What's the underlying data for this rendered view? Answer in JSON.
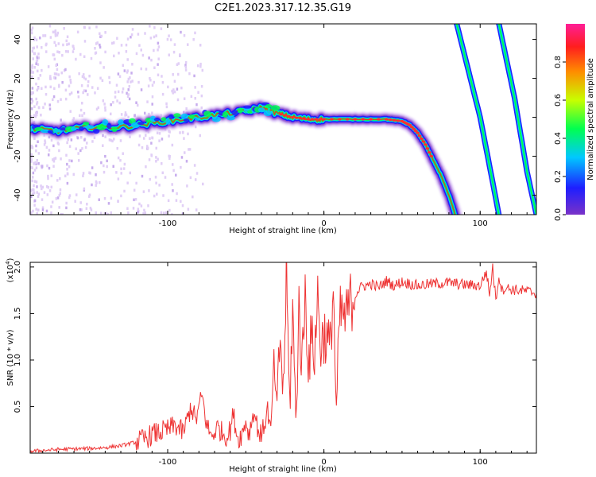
{
  "title": "C2E1.2023.317.12.35.G19",
  "chart_data": [
    {
      "type": "heatmap",
      "name": "spectrogram",
      "xlabel": "Height of straight line (km)",
      "ylabel": "Frequency (Hz)",
      "xlim": [
        -188,
        136
      ],
      "ylim": [
        -50,
        48
      ],
      "xticks": [
        -100,
        0,
        100
      ],
      "xtick_labels": [
        "-100",
        "0",
        "100"
      ],
      "yticks": [
        -40,
        -20,
        0,
        20,
        40
      ],
      "ytick_labels": [
        "-40",
        "-20",
        "0",
        "20",
        "40"
      ],
      "traces": [
        {
          "name": "main-trace",
          "x": [
            -188,
            -170,
            -150,
            -130,
            -110,
            -90,
            -70,
            -50,
            -40,
            -30,
            -20,
            -10,
            0,
            20,
            40,
            50,
            55,
            60,
            65,
            70,
            75,
            80,
            84
          ],
          "y": [
            -6,
            -7,
            -5,
            -5,
            -3,
            -1,
            1,
            3,
            5,
            2,
            0,
            -1,
            -1,
            -1,
            -1,
            -2,
            -4,
            -8,
            -14,
            -22,
            -30,
            -40,
            -50
          ]
        },
        {
          "name": "descending-trace-1",
          "x": [
            85,
            100,
            112
          ],
          "y": [
            48,
            0,
            -50
          ]
        },
        {
          "name": "descending-trace-2",
          "x": [
            112,
            122,
            130,
            136
          ],
          "y": [
            48,
            10,
            -28,
            -50
          ]
        }
      ],
      "colorbar": {
        "label": "Normalized spectral amplitude",
        "range": [
          0,
          1
        ],
        "ticks": [
          0.0,
          0.2,
          0.4,
          0.6,
          0.8
        ],
        "tick_labels": [
          "0.0",
          "0.2",
          "0.4",
          "0.6",
          "0.8"
        ],
        "colors": [
          "#7a32c8",
          "#1e1eff",
          "#00c8ff",
          "#00ff50",
          "#c8ff00",
          "#ff8c00",
          "#ff1e1e",
          "#ff1e96"
        ]
      }
    },
    {
      "type": "line",
      "name": "snr",
      "xlabel": "Height of straight line (km)",
      "ylabel": "SNR (10 * v/v)",
      "scale_label": "(x10",
      "scale_exponent": "4",
      "scale_suffix": ")",
      "xlim": [
        -188,
        136
      ],
      "ylim": [
        0,
        2.05
      ],
      "xticks": [
        -100,
        0,
        100
      ],
      "xtick_labels": [
        "-100",
        "0",
        "100"
      ],
      "yticks": [
        0.5,
        1.0,
        1.5,
        2.0
      ],
      "ytick_labels": [
        "0.5",
        "1.0",
        "1.5",
        "2.0"
      ],
      "line_color": "#ee3333",
      "x": [
        -188,
        -170,
        -150,
        -140,
        -130,
        -120,
        -115,
        -110,
        -100,
        -95,
        -90,
        -85,
        -82,
        -78,
        -75,
        -72,
        -68,
        -65,
        -62,
        -60,
        -58,
        -55,
        -52,
        -50,
        -48,
        -45,
        -42,
        -40,
        -38,
        -36,
        -34,
        -32,
        -30,
        -28,
        -26,
        -24,
        -22,
        -20,
        -18,
        -16,
        -14,
        -12,
        -10,
        -8,
        -6,
        -4,
        -2,
        0,
        2,
        4,
        6,
        8,
        10,
        12,
        14,
        16,
        18,
        20,
        22,
        25,
        28,
        30,
        35,
        40,
        45,
        50,
        55,
        60,
        70,
        80,
        90,
        100,
        104,
        106,
        108,
        110,
        112,
        114,
        116,
        120,
        125,
        130,
        136
      ],
      "y": [
        0.02,
        0.04,
        0.05,
        0.06,
        0.08,
        0.12,
        0.15,
        0.2,
        0.25,
        0.3,
        0.22,
        0.5,
        0.35,
        0.62,
        0.3,
        0.18,
        0.28,
        0.22,
        0.18,
        0.25,
        0.42,
        0.15,
        0.22,
        0.35,
        0.2,
        0.45,
        0.25,
        0.18,
        0.32,
        0.48,
        0.2,
        1.0,
        0.4,
        1.3,
        0.6,
        1.95,
        0.5,
        1.55,
        0.3,
        1.6,
        0.9,
        1.75,
        1.0,
        1.2,
        1.1,
        1.7,
        1.15,
        1.3,
        1.2,
        1.1,
        1.8,
        0.35,
        1.45,
        1.5,
        1.4,
        1.6,
        1.65,
        1.7,
        1.75,
        1.8,
        1.8,
        1.82,
        1.78,
        1.85,
        1.8,
        1.84,
        1.82,
        1.8,
        1.82,
        1.83,
        1.81,
        1.8,
        1.95,
        1.7,
        2.0,
        1.65,
        1.9,
        1.75,
        1.78,
        1.76,
        1.75,
        1.74,
        1.72
      ]
    }
  ]
}
